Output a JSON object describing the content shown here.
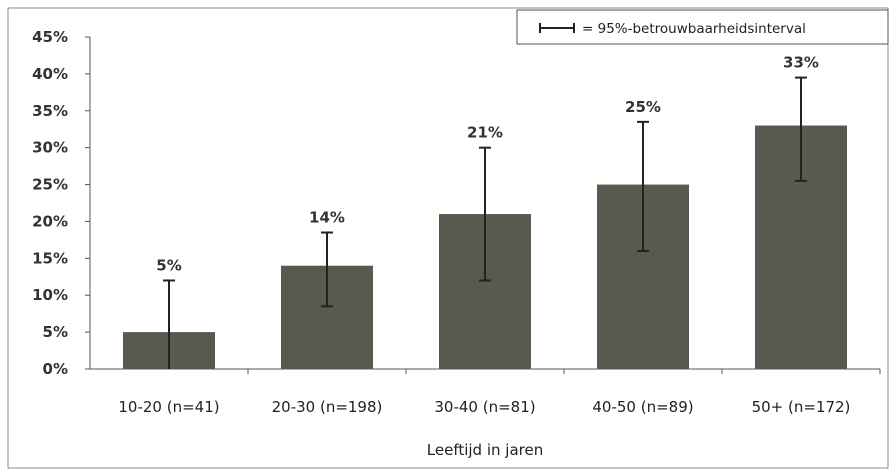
{
  "chart_data": {
    "type": "bar",
    "categories": [
      "10-20 (n=41)",
      "20-30 (n=198)",
      "30-40 (n=81)",
      "40-50 (n=89)",
      "50+ (n=172)"
    ],
    "values": [
      5,
      14,
      21,
      25,
      33
    ],
    "value_labels": [
      "5%",
      "14%",
      "21%",
      "25%",
      "33%"
    ],
    "error_low": [
      0,
      8.5,
      12,
      16,
      25.5
    ],
    "error_high": [
      12,
      18.5,
      30,
      33.5,
      39.5
    ],
    "ylim": [
      0,
      45
    ],
    "yticks": [
      0,
      5,
      10,
      15,
      20,
      25,
      30,
      35,
      40,
      45
    ],
    "ytick_labels": [
      "0%",
      "5%",
      "10%",
      "15%",
      "20%",
      "25%",
      "30%",
      "35%",
      "40%",
      "45%"
    ],
    "xlabel": "Leeftijd in jaren",
    "ylabel": "",
    "title": "",
    "legend": {
      "text": "= 95%-betrouwbaarheidsinterval",
      "position": "top-right"
    },
    "grid": false,
    "colors": {
      "bar": "#585a4f",
      "error_bar": "#222222",
      "axis": "#555555",
      "border": "#888888"
    }
  }
}
